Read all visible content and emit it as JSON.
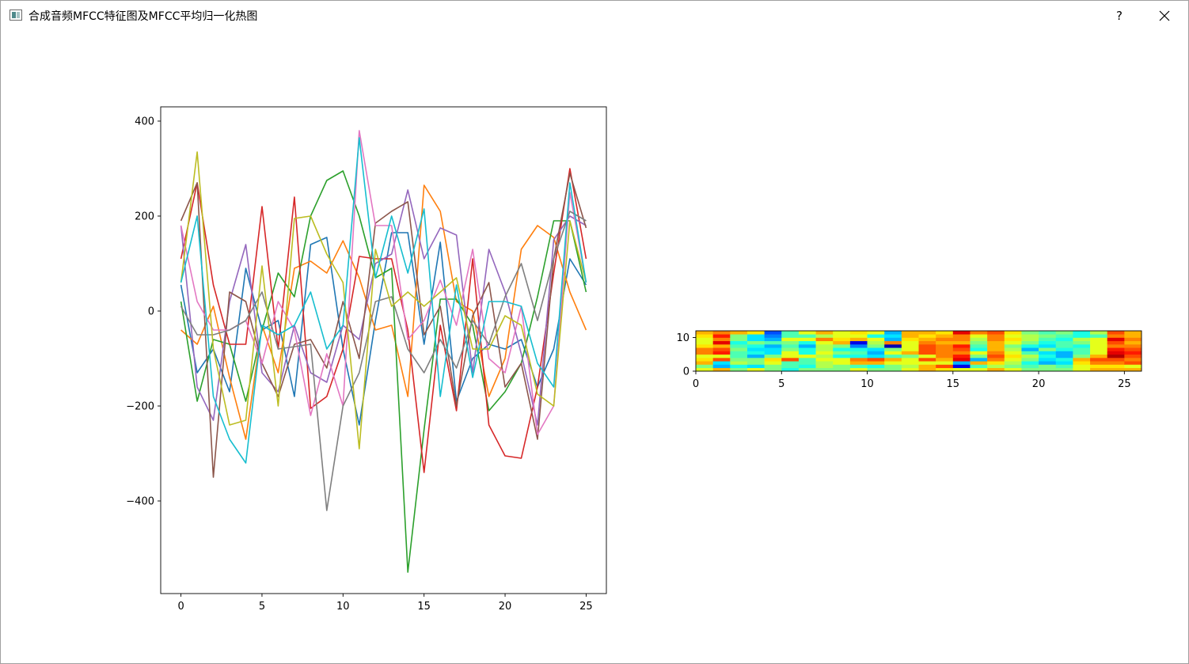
{
  "window": {
    "title": "合成音频MFCC特征图及MFCC平均归一化热图",
    "help_label": "?",
    "icons": {
      "app": "window-app-icon",
      "help": "help-icon",
      "close": "close-icon"
    }
  },
  "chart_data": [
    {
      "type": "line",
      "title": "",
      "xlabel": "",
      "ylabel": "",
      "xlim": [
        -1.25,
        26.25
      ],
      "ylim": [
        -595,
        430
      ],
      "xticks": [
        0,
        5,
        10,
        15,
        20,
        25
      ],
      "yticks": [
        -400,
        -200,
        0,
        200,
        400
      ],
      "x": [
        0,
        1,
        2,
        3,
        4,
        5,
        6,
        7,
        8,
        9,
        10,
        11,
        12,
        13,
        14,
        15,
        16,
        17,
        18,
        19,
        20,
        21,
        22,
        23,
        24,
        25
      ],
      "colors": [
        "#1f77b4",
        "#ff7f0e",
        "#2ca02c",
        "#d62728",
        "#9467bd",
        "#8c564b",
        "#e377c2",
        "#7f7f7f",
        "#bcbd22",
        "#17becf"
      ],
      "series": [
        {
          "values": [
            55,
            -130,
            -80,
            -170,
            90,
            -40,
            -20,
            -180,
            140,
            155,
            -80,
            -240,
            -20,
            165,
            165,
            -70,
            145,
            -190,
            -100,
            -70,
            -80,
            -60,
            -160,
            -80,
            110,
            55
          ]
        },
        {
          "values": [
            -40,
            -70,
            10,
            -140,
            -270,
            -30,
            -130,
            90,
            105,
            80,
            148,
            70,
            -40,
            -30,
            -180,
            265,
            210,
            20,
            0,
            -180,
            -100,
            130,
            180,
            155,
            40,
            -40
          ]
        },
        {
          "values": [
            20,
            -190,
            -60,
            -70,
            -190,
            -40,
            80,
            30,
            200,
            275,
            295,
            200,
            70,
            90,
            -550,
            -250,
            25,
            25,
            -30,
            -210,
            -170,
            -110,
            30,
            190,
            190,
            40
          ]
        },
        {
          "values": [
            110,
            270,
            55,
            -70,
            -70,
            220,
            -80,
            240,
            -205,
            -180,
            -80,
            115,
            110,
            110,
            -40,
            -340,
            -30,
            -210,
            110,
            -240,
            -305,
            -310,
            -160,
            80,
            300,
            110
          ]
        },
        {
          "values": [
            180,
            -160,
            -230,
            20,
            140,
            -130,
            -170,
            -30,
            -130,
            -150,
            -30,
            -60,
            100,
            120,
            255,
            110,
            175,
            160,
            -130,
            130,
            40,
            -90,
            -240,
            150,
            200,
            180
          ]
        },
        {
          "values": [
            190,
            270,
            -350,
            40,
            20,
            -110,
            -180,
            -70,
            -60,
            -120,
            20,
            -100,
            185,
            210,
            230,
            -50,
            10,
            -200,
            -10,
            60,
            -160,
            -110,
            -270,
            110,
            290,
            175
          ]
        },
        {
          "values": [
            180,
            20,
            -40,
            -40,
            -20,
            -110,
            20,
            -40,
            -220,
            -90,
            -200,
            380,
            180,
            180,
            -60,
            -20,
            65,
            -30,
            130,
            -100,
            -130,
            10,
            -260,
            -200,
            250,
            60
          ]
        },
        {
          "values": [
            10,
            -50,
            -50,
            -40,
            -20,
            40,
            -80,
            -75,
            -70,
            -420,
            -200,
            -130,
            20,
            30,
            -80,
            -130,
            -60,
            -120,
            -20,
            -70,
            30,
            100,
            -20,
            110,
            210,
            190
          ]
        },
        {
          "values": [
            60,
            335,
            -80,
            -240,
            -230,
            95,
            -200,
            195,
            200,
            120,
            60,
            -290,
            130,
            10,
            40,
            10,
            40,
            70,
            -80,
            -80,
            -10,
            -30,
            -175,
            -200,
            190,
            60
          ]
        },
        {
          "values": [
            60,
            200,
            -180,
            -270,
            -320,
            -30,
            -50,
            -30,
            40,
            -80,
            -30,
            365,
            70,
            200,
            80,
            215,
            -180,
            55,
            -140,
            20,
            20,
            10,
            -110,
            -160,
            270,
            60
          ]
        }
      ]
    },
    {
      "type": "heatmap",
      "title": "",
      "xlabel": "",
      "ylabel": "",
      "xlim": [
        0,
        26
      ],
      "ylim": [
        0,
        12
      ],
      "xticks": [
        0,
        5,
        10,
        15,
        20,
        25
      ],
      "yticks": [
        0,
        10
      ],
      "colormap": "jet",
      "rows": 12,
      "cols": 26,
      "values": [
        [
          0.6,
          0.7,
          0.5,
          0.6,
          0.5,
          0.4,
          0.5,
          0.5,
          0.5,
          0.6,
          0.5,
          0.5,
          0.6,
          0.7,
          0.65,
          0.6,
          0.6,
          0.7,
          0.6,
          0.5,
          0.5,
          0.5,
          0.6,
          0.7,
          0.7,
          0.7
        ],
        [
          0.5,
          0.3,
          0.4,
          0.35,
          0.5,
          0.45,
          0.4,
          0.55,
          0.5,
          0.45,
          0.4,
          0.5,
          0.55,
          0.7,
          0.8,
          0.1,
          0.45,
          0.55,
          0.5,
          0.45,
          0.5,
          0.45,
          0.6,
          0.65,
          0.65,
          0.6
        ],
        [
          0.7,
          0.35,
          0.55,
          0.5,
          0.6,
          0.45,
          0.45,
          0.55,
          0.6,
          0.7,
          0.7,
          0.6,
          0.6,
          0.6,
          0.6,
          0.3,
          0.7,
          0.65,
          0.55,
          0.4,
          0.3,
          0.35,
          0.65,
          0.75,
          0.75,
          0.8
        ],
        [
          0.65,
          0.8,
          0.5,
          0.5,
          0.65,
          0.8,
          0.45,
          0.6,
          0.6,
          0.75,
          0.8,
          0.7,
          0.6,
          0.8,
          0.7,
          0.9,
          0.3,
          0.75,
          0.6,
          0.5,
          0.35,
          0.4,
          0.7,
          0.8,
          0.8,
          0.75
        ],
        [
          0.6,
          0.6,
          0.45,
          0.3,
          0.5,
          0.6,
          0.6,
          0.55,
          0.4,
          0.4,
          0.35,
          0.45,
          0.5,
          0.6,
          0.75,
          0.85,
          0.5,
          0.8,
          0.65,
          0.55,
          0.4,
          0.3,
          0.5,
          0.7,
          0.95,
          0.8
        ],
        [
          0.75,
          0.85,
          0.45,
          0.4,
          0.35,
          0.6,
          0.4,
          0.6,
          0.5,
          0.45,
          0.3,
          0.6,
          0.7,
          0.8,
          0.75,
          0.75,
          0.6,
          0.75,
          0.6,
          0.45,
          0.35,
          0.3,
          0.45,
          0.6,
          0.9,
          0.85
        ],
        [
          0.75,
          0.8,
          0.5,
          0.35,
          0.35,
          0.5,
          0.4,
          0.55,
          0.4,
          0.4,
          0.35,
          0.5,
          0.6,
          0.8,
          0.75,
          0.8,
          0.4,
          0.7,
          0.55,
          0.3,
          0.5,
          0.4,
          0.45,
          0.6,
          0.85,
          0.8
        ],
        [
          0.65,
          0.7,
          0.45,
          0.4,
          0.3,
          0.45,
          0.3,
          0.55,
          0.5,
          0.25,
          0.5,
          0.05,
          0.6,
          0.8,
          0.75,
          0.85,
          0.45,
          0.7,
          0.5,
          0.4,
          0.35,
          0.45,
          0.4,
          0.6,
          0.75,
          0.75
        ],
        [
          0.6,
          0.9,
          0.4,
          0.5,
          0.45,
          0.5,
          0.4,
          0.6,
          0.7,
          0.1,
          0.55,
          0.75,
          0.6,
          0.75,
          0.7,
          0.7,
          0.5,
          0.7,
          0.6,
          0.5,
          0.4,
          0.45,
          0.5,
          0.6,
          0.8,
          0.7
        ],
        [
          0.6,
          0.75,
          0.5,
          0.35,
          0.3,
          0.6,
          0.6,
          0.75,
          0.65,
          0.7,
          0.6,
          0.3,
          0.65,
          0.7,
          0.75,
          0.75,
          0.55,
          0.75,
          0.65,
          0.55,
          0.45,
          0.4,
          0.55,
          0.6,
          0.9,
          0.75
        ],
        [
          0.65,
          0.85,
          0.5,
          0.35,
          0.25,
          0.45,
          0.45,
          0.55,
          0.6,
          0.6,
          0.4,
          0.35,
          0.7,
          0.65,
          0.7,
          0.75,
          0.6,
          0.75,
          0.6,
          0.55,
          0.5,
          0.45,
          0.4,
          0.45,
          0.75,
          0.7
        ],
        [
          0.7,
          0.75,
          0.7,
          0.65,
          0.2,
          0.45,
          0.6,
          0.7,
          0.6,
          0.65,
          0.6,
          0.3,
          0.7,
          0.7,
          0.65,
          0.9,
          0.75,
          0.8,
          0.65,
          0.5,
          0.45,
          0.5,
          0.4,
          0.55,
          0.8,
          0.7
        ]
      ]
    }
  ]
}
